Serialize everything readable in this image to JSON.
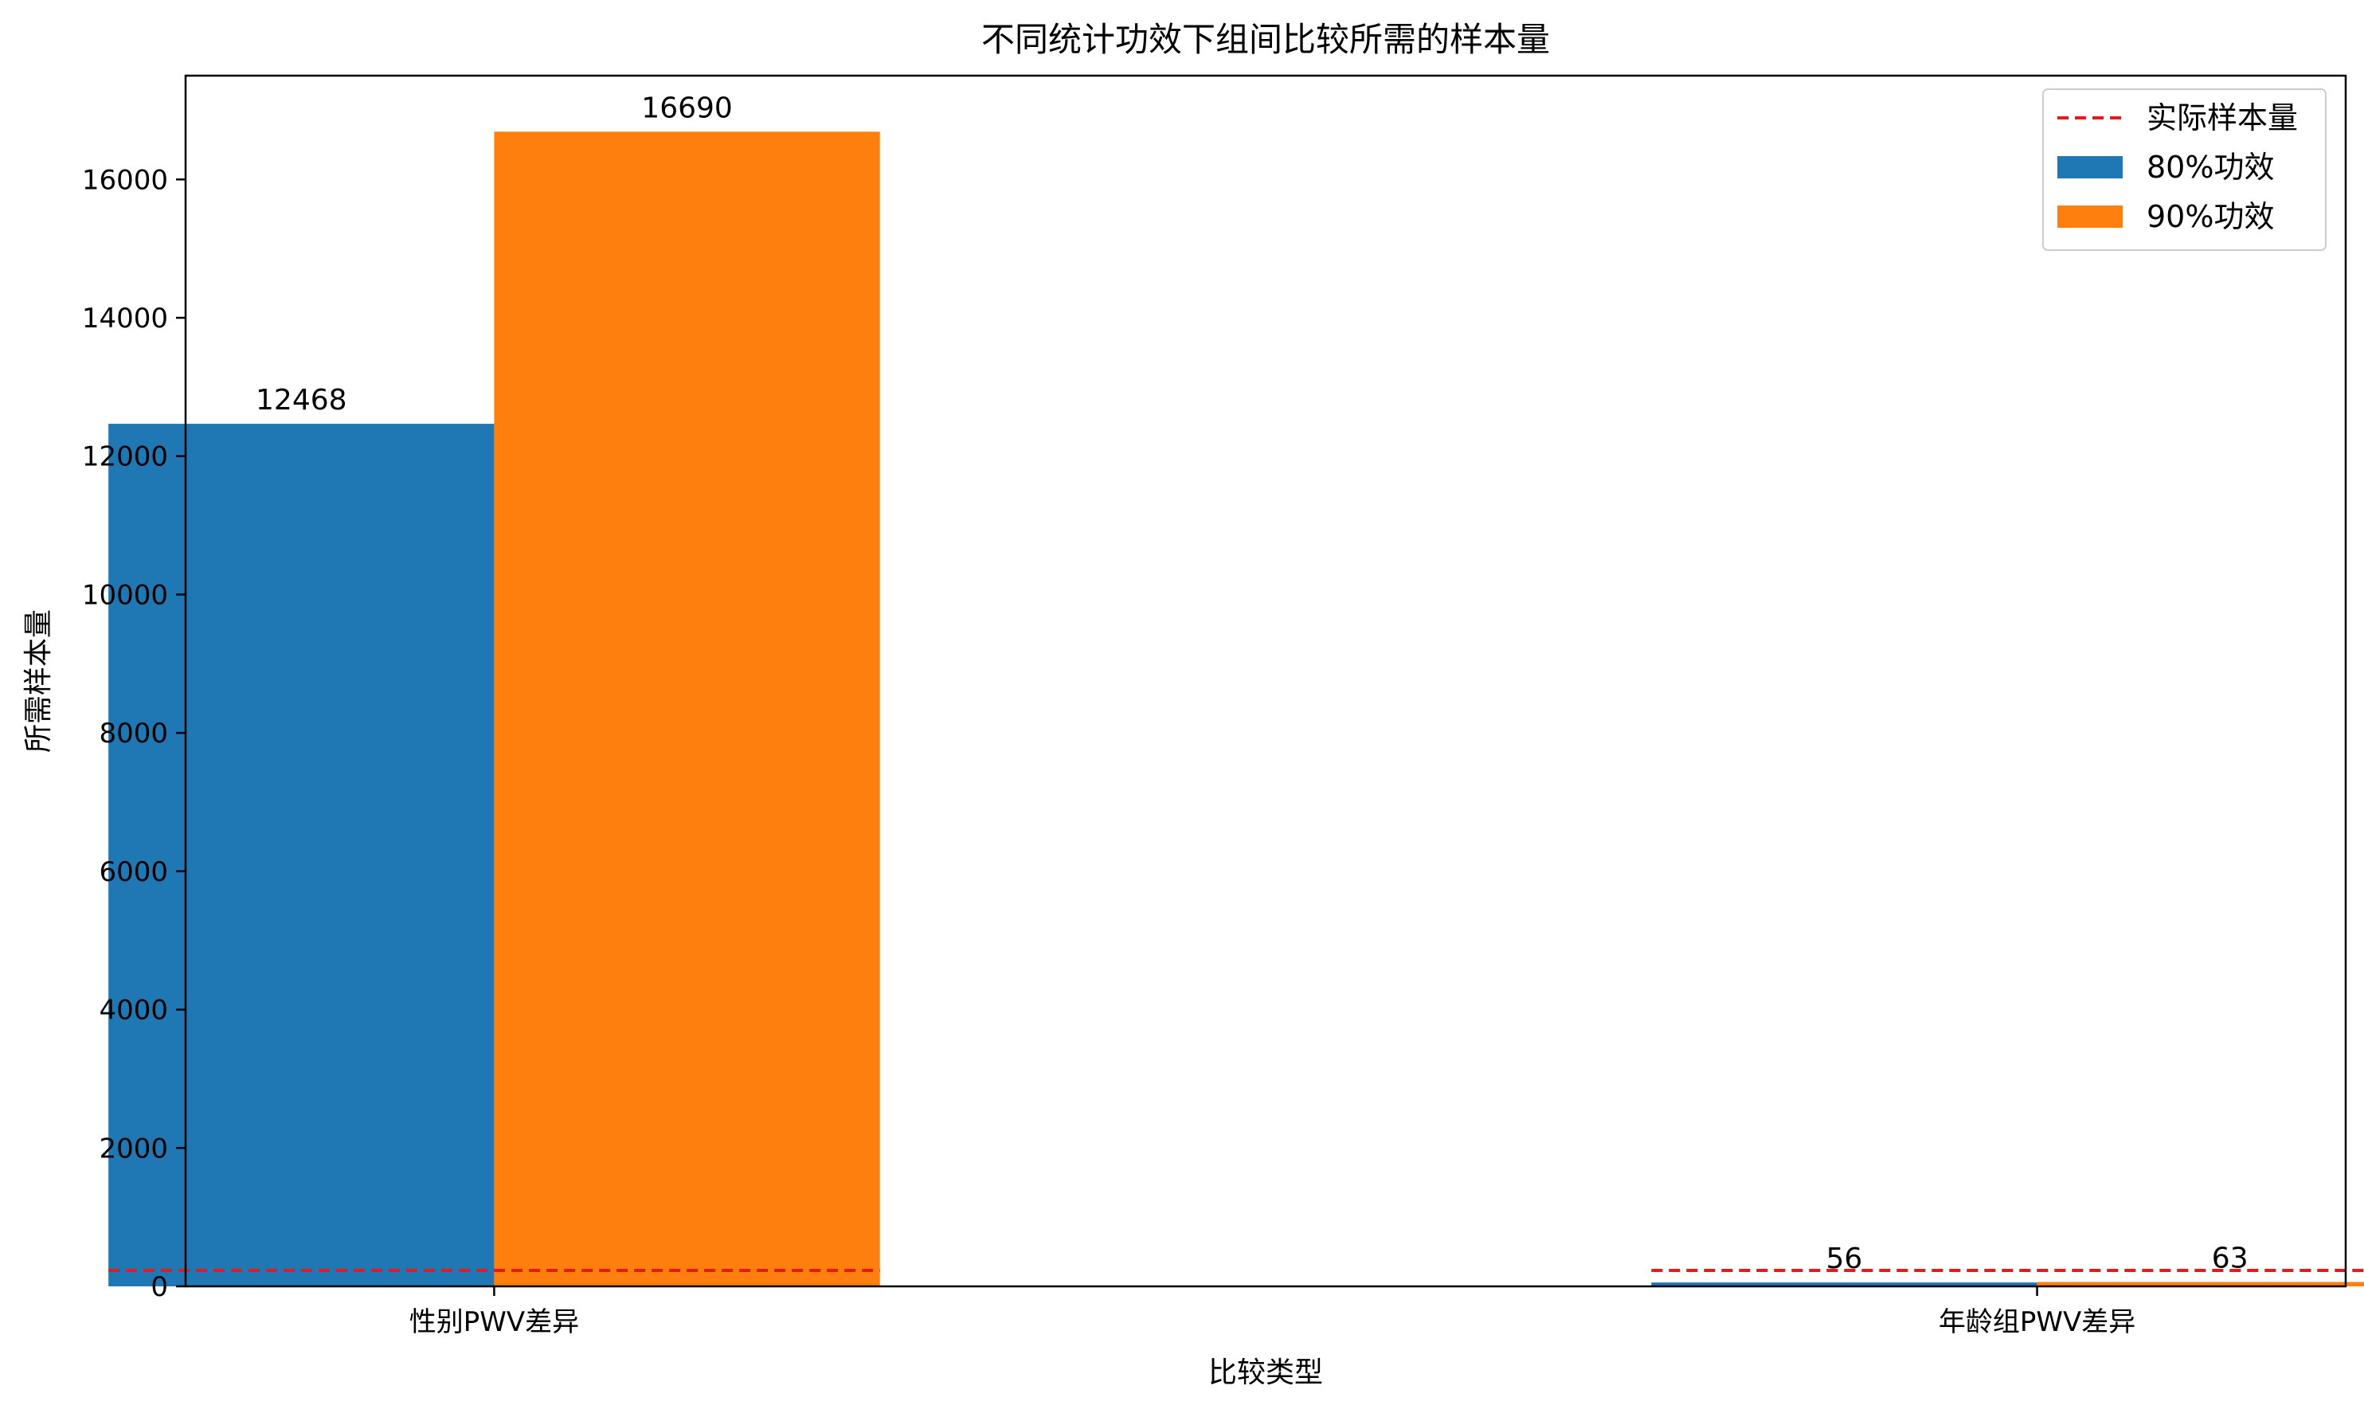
{
  "chart_data": {
    "type": "bar",
    "title": "不同统计功效下组间比较所需的样本量",
    "xlabel": "比较类型",
    "ylabel": "所需样本量",
    "categories": [
      "性别PWV差异",
      "年龄组PWV差异"
    ],
    "series": [
      {
        "name": "80%功效",
        "values": [
          12468,
          56
        ],
        "color": "#1f77b4"
      },
      {
        "name": "90%功效",
        "values": [
          16690,
          63
        ],
        "color": "#ff7f0e"
      }
    ],
    "reference_line": {
      "name": "实际样本量",
      "value": 230,
      "color": "#e41a1c",
      "style": "dashed"
    },
    "ylim": [
      0,
      17500
    ],
    "yticks": [
      0,
      2000,
      4000,
      6000,
      8000,
      10000,
      12000,
      14000,
      16000
    ],
    "data_labels": [
      "12468",
      "16690",
      "56",
      "63"
    ],
    "legend_position": "top-right",
    "legend_entries": [
      "实际样本量",
      "80%功效",
      "90%功效"
    ],
    "grid": false
  }
}
